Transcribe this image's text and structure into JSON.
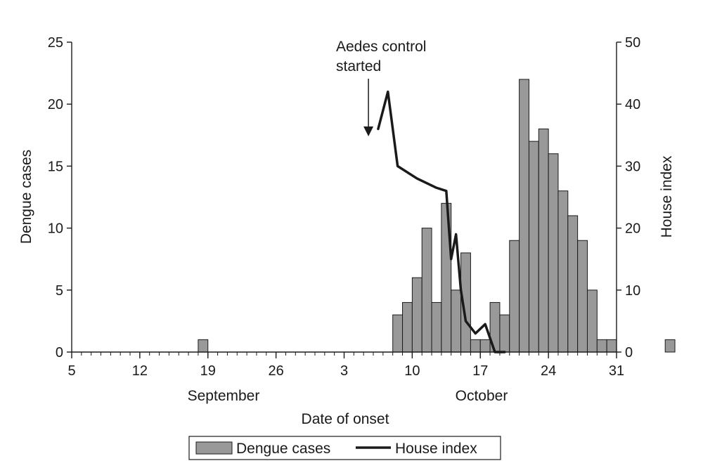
{
  "chart_data": {
    "type": "bar",
    "xlabel": "Date of onset",
    "ylabel": "Dengue cases",
    "y2label": "House index",
    "ylim": [
      0,
      25
    ],
    "y2lim": [
      0,
      50
    ],
    "yticks": [
      0,
      5,
      10,
      15,
      20,
      25
    ],
    "y2ticks": [
      0,
      10,
      20,
      30,
      40,
      50
    ],
    "x_tick_labels": [
      "5",
      "12",
      "19",
      "26",
      "3",
      "10",
      "17",
      "24",
      "31"
    ],
    "month_labels": [
      "September",
      "October"
    ],
    "grid": false,
    "legend_position": "bottom-center",
    "annotation": {
      "line1": "Aedes control",
      "line2": "started",
      "arrow_day": 35
    },
    "series": [
      {
        "name": "Dengue cases",
        "type": "bar",
        "color": "#999999",
        "x": [
          18,
          38,
          39,
          40,
          41,
          42,
          43,
          44,
          45,
          46,
          47,
          48,
          49,
          50,
          51,
          52,
          53,
          54,
          55,
          56,
          57,
          58,
          59,
          60,
          61,
          62,
          63,
          66
        ],
        "values": [
          1,
          3,
          4,
          6,
          10,
          4,
          12,
          5,
          8,
          1,
          1,
          4,
          3,
          9,
          22,
          17,
          18,
          16,
          13,
          11,
          9,
          5,
          1,
          1,
          0,
          0,
          0,
          1
        ]
      },
      {
        "name": "House index",
        "type": "line",
        "axis": "right",
        "color": "#1a1a1a",
        "x": [
          36,
          37,
          38,
          40,
          42,
          43,
          43.5,
          44,
          44.5,
          45,
          46,
          47,
          48,
          49,
          49.5,
          50,
          50.5,
          51,
          52
        ],
        "values": [
          36,
          42,
          30,
          28,
          26.5,
          26,
          15,
          19,
          10,
          5,
          3,
          4.5,
          0,
          0,
          null,
          null,
          null,
          null,
          null
        ]
      }
    ]
  }
}
